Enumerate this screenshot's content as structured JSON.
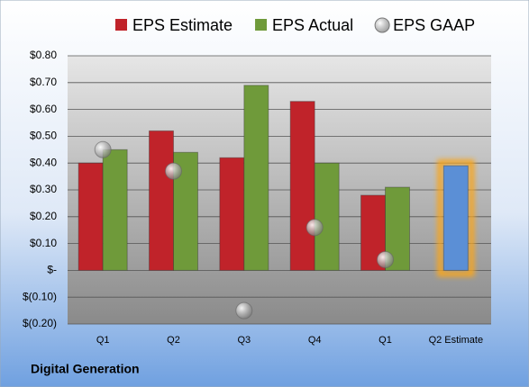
{
  "chart_data": {
    "type": "bar",
    "footer_title": "Digital Generation",
    "categories": [
      "Q1",
      "Q2",
      "Q3",
      "Q4",
      "Q1",
      "Q2 Estimate"
    ],
    "series": [
      {
        "name": "EPS Estimate",
        "color": "#c0232a",
        "colors": [
          "#c0232a",
          "#c0232a",
          "#c0232a",
          "#c0232a",
          "#c0232a",
          "#5b8fd6"
        ],
        "values": [
          0.4,
          0.52,
          0.42,
          0.63,
          0.28,
          0.39
        ]
      },
      {
        "name": "EPS Actual",
        "color": "#6f9a3a",
        "values": [
          0.45,
          0.44,
          0.69,
          0.4,
          0.31,
          null
        ]
      },
      {
        "name": "EPS GAAP",
        "color": "#9a9a9a",
        "marker": "sphere",
        "values": [
          0.45,
          0.37,
          -0.15,
          0.16,
          0.04,
          null
        ]
      }
    ],
    "ylim": [
      -0.2,
      0.8
    ],
    "yticks": [
      {
        "value": -0.2,
        "label": "$(0.20)"
      },
      {
        "value": -0.1,
        "label": "$(0.10)"
      },
      {
        "value": 0,
        "label": "$-"
      },
      {
        "value": 0.1,
        "label": "$0.10"
      },
      {
        "value": 0.2,
        "label": "$0.20"
      },
      {
        "value": 0.3,
        "label": "$0.30"
      },
      {
        "value": 0.4,
        "label": "$0.40"
      },
      {
        "value": 0.5,
        "label": "$0.50"
      },
      {
        "value": 0.6,
        "label": "$0.60"
      },
      {
        "value": 0.7,
        "label": "$0.70"
      },
      {
        "value": 0.8,
        "label": "$0.80"
      }
    ],
    "grid": true
  }
}
